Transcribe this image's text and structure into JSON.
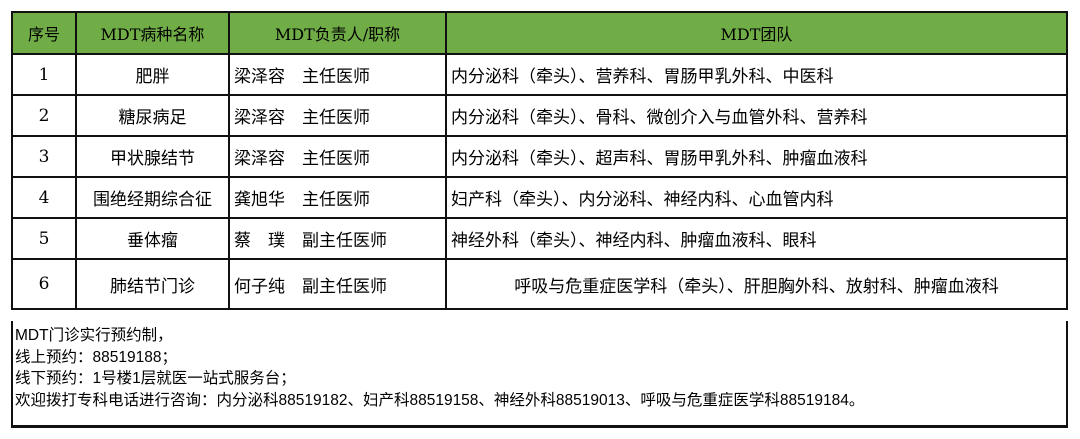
{
  "header": [
    "序号",
    "MDT病种名称",
    "MDT负责人/职称",
    "MDT团队"
  ],
  "rows": [
    {
      "no": "1",
      "name": "肥胖",
      "lead": "梁泽容　主任医师",
      "team": "内分泌科（牵头）、营养科、胃肠甲乳外科、中医科"
    },
    {
      "no": "2",
      "name": "糖尿病足",
      "lead": "梁泽容　主任医师",
      "team": "内分泌科（牵头）、骨科、微创介入与血管外科、营养科"
    },
    {
      "no": "3",
      "name": "甲状腺结节",
      "lead": "梁泽容　主任医师",
      "team": "内分泌科（牵头）、超声科、胃肠甲乳外科、肿瘤血液科"
    },
    {
      "no": "4",
      "name": "围绝经期综合征",
      "lead": "龚旭华　主任医师",
      "team": "妇产科（牵头）、内分泌科、神经内科、心血管内科"
    },
    {
      "no": "5",
      "name": "垂体瘤",
      "lead": "蔡　璞　副主任医师",
      "team": "神经外科（牵头）、神经内科、肿瘤血液科、眼科"
    },
    {
      "no": "6",
      "name": "肺结节门诊",
      "lead": "何子纯　副主任医师",
      "team": "呼吸与危重症医学科（牵头）、肝胆胸外科、放射科、肿瘤血液科"
    }
  ],
  "notes": [
    "MDT门诊实行预约制，",
    "线上预约：88519188；",
    "线下预约：1号楼1层就医一站式服务台；",
    "欢迎拨打专科电话进行咨询：内分泌科88519182、妇产科88519158、神经外科88519013、呼吸与危重症医学科88519184。"
  ],
  "colors": {
    "header_bg": "#70ad47"
  }
}
